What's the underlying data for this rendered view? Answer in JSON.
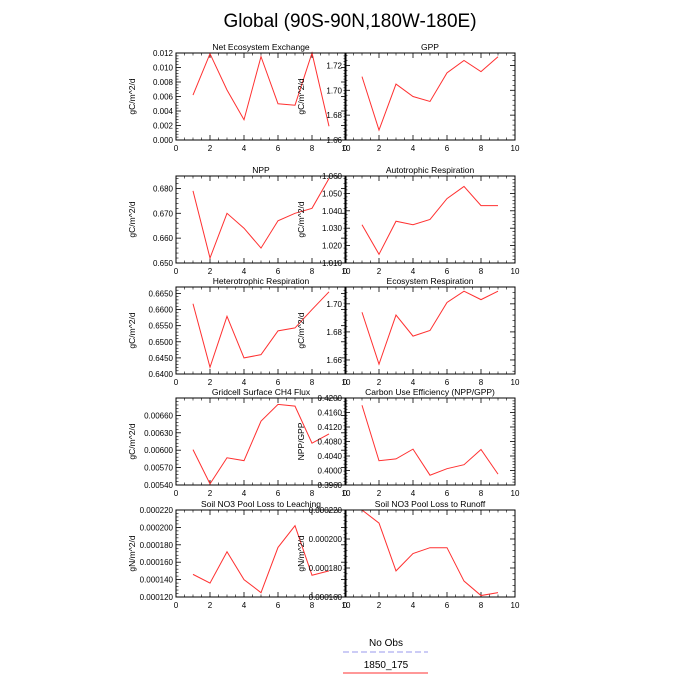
{
  "figure_title": "Global (90S-90N,180W-180E)",
  "legend": {
    "entries": [
      {
        "label": "No Obs",
        "color": "#9a9aee",
        "style": "dashed"
      },
      {
        "label": "1850_175",
        "color": "#ff3030",
        "style": "solid"
      }
    ]
  },
  "chart_data": [
    {
      "type": "line",
      "title": "Net Ecosystem Exchange",
      "ylabel": "gC/m^2/d",
      "xlim": [
        0,
        10
      ],
      "ylim": [
        0.0,
        0.012
      ],
      "xticks": [
        0,
        2,
        4,
        6,
        8,
        10
      ],
      "yticks": [
        0.0,
        0.002,
        0.004,
        0.006,
        0.008,
        0.01,
        0.012
      ],
      "ytick_labels": [
        "0.000",
        "0.002",
        "0.004",
        "0.006",
        "0.008",
        "0.010",
        "0.012"
      ],
      "series": [
        {
          "name": "1850_175",
          "color": "#ff3030",
          "x": [
            1,
            2,
            3,
            4,
            5,
            6,
            7,
            8,
            9
          ],
          "values": [
            0.0062,
            0.0119,
            0.0069,
            0.0028,
            0.0115,
            0.005,
            0.0048,
            0.012,
            0.0019
          ]
        }
      ]
    },
    {
      "type": "line",
      "title": "GPP",
      "ylabel": "gC/m^2/d",
      "xlim": [
        0,
        10
      ],
      "ylim": [
        1.66,
        1.73
      ],
      "xticks": [
        0,
        2,
        4,
        6,
        8,
        10
      ],
      "yticks": [
        1.66,
        1.68,
        1.7,
        1.72
      ],
      "ytick_labels": [
        "1.66",
        "1.68",
        "1.70",
        "1.72"
      ],
      "series": [
        {
          "name": "1850_175",
          "color": "#ff3030",
          "x": [
            1,
            2,
            3,
            4,
            5,
            6,
            7,
            8,
            9
          ],
          "values": [
            1.711,
            1.668,
            1.705,
            1.695,
            1.691,
            1.714,
            1.724,
            1.715,
            1.727
          ]
        }
      ]
    },
    {
      "type": "line",
      "title": "NPP",
      "ylabel": "gC/m^2/d",
      "xlim": [
        0,
        10
      ],
      "ylim": [
        0.65,
        0.685
      ],
      "xticks": [
        0,
        2,
        4,
        6,
        8,
        10
      ],
      "yticks": [
        0.65,
        0.66,
        0.67,
        0.68
      ],
      "ytick_labels": [
        "0.650",
        "0.660",
        "0.670",
        "0.680"
      ],
      "series": [
        {
          "name": "1850_175",
          "color": "#ff3030",
          "x": [
            1,
            2,
            3,
            4,
            5,
            6,
            7,
            8,
            9
          ],
          "values": [
            0.679,
            0.652,
            0.67,
            0.664,
            0.656,
            0.667,
            0.67,
            0.672,
            0.684
          ]
        }
      ]
    },
    {
      "type": "line",
      "title": "Autotrophic Respiration",
      "ylabel": "gC/m^2/d",
      "xlim": [
        0,
        10
      ],
      "ylim": [
        1.01,
        1.06
      ],
      "xticks": [
        0,
        2,
        4,
        6,
        8,
        10
      ],
      "yticks": [
        1.01,
        1.02,
        1.03,
        1.04,
        1.05,
        1.06
      ],
      "ytick_labels": [
        "1.010",
        "1.020",
        "1.030",
        "1.040",
        "1.050",
        "1.060"
      ],
      "series": [
        {
          "name": "1850_175",
          "color": "#ff3030",
          "x": [
            1,
            2,
            3,
            4,
            5,
            6,
            7,
            8,
            9
          ],
          "values": [
            1.032,
            1.015,
            1.034,
            1.032,
            1.035,
            1.047,
            1.054,
            1.043,
            1.043
          ]
        }
      ]
    },
    {
      "type": "line",
      "title": "Heterotrophic Respiration",
      "ylabel": "gC/m^2/d",
      "xlim": [
        0,
        10
      ],
      "ylim": [
        0.64,
        0.667
      ],
      "xticks": [
        0,
        2,
        4,
        6,
        8,
        10
      ],
      "yticks": [
        0.64,
        0.645,
        0.65,
        0.655,
        0.66,
        0.665
      ],
      "ytick_labels": [
        "0.6400",
        "0.6450",
        "0.6500",
        "0.6550",
        "0.6600",
        "0.6650"
      ],
      "series": [
        {
          "name": "1850_175",
          "color": "#ff3030",
          "x": [
            1,
            2,
            3,
            4,
            5,
            6,
            7,
            8,
            9
          ],
          "values": [
            0.6618,
            0.6421,
            0.6579,
            0.645,
            0.646,
            0.6534,
            0.6543,
            0.66,
            0.6655
          ]
        }
      ]
    },
    {
      "type": "line",
      "title": "Ecosystem Respiration",
      "ylabel": "gC/m^2/d",
      "xlim": [
        0,
        10
      ],
      "ylim": [
        1.65,
        1.712
      ],
      "xticks": [
        0,
        2,
        4,
        6,
        8,
        10
      ],
      "yticks": [
        1.66,
        1.68,
        1.7
      ],
      "ytick_labels": [
        "1.66",
        "1.68",
        "1.70"
      ],
      "series": [
        {
          "name": "1850_175",
          "color": "#ff3030",
          "x": [
            1,
            2,
            3,
            4,
            5,
            6,
            7,
            8,
            9
          ],
          "values": [
            1.694,
            1.657,
            1.692,
            1.677,
            1.681,
            1.701,
            1.709,
            1.703,
            1.709
          ]
        }
      ]
    },
    {
      "type": "line",
      "title": "Gridcell Surface CH4 Flux",
      "ylabel": "gC/m^2/d",
      "xlim": [
        0,
        10
      ],
      "ylim": [
        0.0054,
        0.0069
      ],
      "xticks": [
        0,
        2,
        4,
        6,
        8,
        10
      ],
      "yticks": [
        0.0054,
        0.0057,
        0.006,
        0.0063,
        0.0066
      ],
      "ytick_labels": [
        "0.00540",
        "0.00570",
        "0.00600",
        "0.00630",
        "0.00660"
      ],
      "series": [
        {
          "name": "1850_175",
          "color": "#ff3030",
          "x": [
            1,
            2,
            3,
            4,
            5,
            6,
            7,
            8,
            9
          ],
          "values": [
            0.00601,
            0.00542,
            0.00587,
            0.00582,
            0.0065,
            0.00679,
            0.00676,
            0.00612,
            0.00628
          ]
        }
      ]
    },
    {
      "type": "line",
      "title": "Carbon Use Efficiency (NPP/GPP)",
      "ylabel": "NPP/GPP",
      "xlim": [
        0,
        10
      ],
      "ylim": [
        0.396,
        0.42
      ],
      "xticks": [
        0,
        2,
        4,
        6,
        8,
        10
      ],
      "yticks": [
        0.396,
        0.4,
        0.404,
        0.408,
        0.412,
        0.416,
        0.42
      ],
      "ytick_labels": [
        "0.3960",
        "0.4000",
        "0.4040",
        "0.4080",
        "0.4120",
        "0.4160",
        "0.4200"
      ],
      "series": [
        {
          "name": "1850_175",
          "color": "#ff3030",
          "x": [
            1,
            2,
            3,
            4,
            5,
            6,
            7,
            8,
            9
          ],
          "values": [
            0.418,
            0.4027,
            0.4032,
            0.4059,
            0.3987,
            0.4005,
            0.4016,
            0.4058,
            0.399
          ]
        }
      ]
    },
    {
      "type": "line",
      "title": "Soil NO3 Pool Loss to Leaching",
      "ylabel": "gN/m^2/d",
      "xlim": [
        0,
        10
      ],
      "ylim": [
        0.00012,
        0.00022
      ],
      "xticks": [
        0,
        2,
        4,
        6,
        8,
        10
      ],
      "yticks": [
        0.00012,
        0.00014,
        0.00016,
        0.00018,
        0.0002,
        0.00022
      ],
      "ytick_labels": [
        "0.000120",
        "0.000140",
        "0.000160",
        "0.000180",
        "0.000200",
        "0.000220"
      ],
      "series": [
        {
          "name": "1850_175",
          "color": "#ff3030",
          "x": [
            1,
            2,
            3,
            4,
            5,
            6,
            7,
            8,
            9
          ],
          "values": [
            0.000146,
            0.000136,
            0.000172,
            0.00014,
            0.000125,
            0.000177,
            0.000202,
            0.000145,
            0.00015
          ]
        }
      ]
    },
    {
      "type": "line",
      "title": "Soil NO3 Pool Loss to Runoff",
      "ylabel": "gN/m^2/d",
      "xlim": [
        0,
        10
      ],
      "ylim": [
        0.00016,
        0.00022
      ],
      "xticks": [
        0,
        2,
        4,
        6,
        8,
        10
      ],
      "yticks": [
        0.00016,
        0.00018,
        0.0002,
        0.00022
      ],
      "ytick_labels": [
        "0.000160",
        "0.000180",
        "0.000200",
        "0.000220"
      ],
      "series": [
        {
          "name": "1850_175",
          "color": "#ff3030",
          "x": [
            1,
            2,
            3,
            4,
            5,
            6,
            7,
            8,
            9
          ],
          "values": [
            0.00022,
            0.000211,
            0.000178,
            0.00019,
            0.000194,
            0.000194,
            0.000171,
            0.000161,
            0.000163
          ]
        }
      ]
    }
  ]
}
